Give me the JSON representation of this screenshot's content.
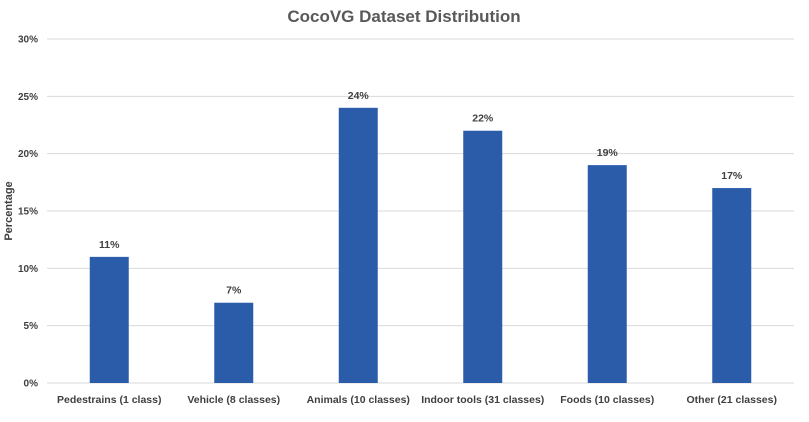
{
  "chart_data": {
    "type": "bar",
    "title": "CocoVG Dataset Distribution",
    "xlabel": "",
    "ylabel": "Percentage",
    "categories": [
      "Pedestrains (1 class)",
      "Vehicle (8 classes)",
      "Animals (10 classes)",
      "Indoor tools (31 classes)",
      "Foods (10 classes)",
      "Other (21 classes)"
    ],
    "values": [
      11,
      7,
      24,
      22,
      19,
      17
    ],
    "data_labels": [
      "11%",
      "7%",
      "24%",
      "22%",
      "19%",
      "17%"
    ],
    "ylim": [
      0,
      30
    ],
    "yticks": [
      0,
      5,
      10,
      15,
      20,
      25,
      30
    ],
    "ytick_labels": [
      "0%",
      "5%",
      "10%",
      "15%",
      "20%",
      "25%",
      "30%"
    ],
    "grid": true,
    "bar_color": "#2a5caa"
  }
}
